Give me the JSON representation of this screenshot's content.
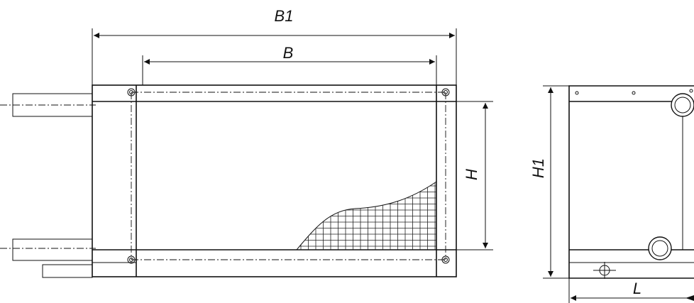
{
  "front_view": {
    "labels": {
      "overall_width": "B1",
      "inner_width": "B",
      "height": "H"
    }
  },
  "side_view": {
    "labels": {
      "overall_height": "H1",
      "length": "L"
    }
  }
}
